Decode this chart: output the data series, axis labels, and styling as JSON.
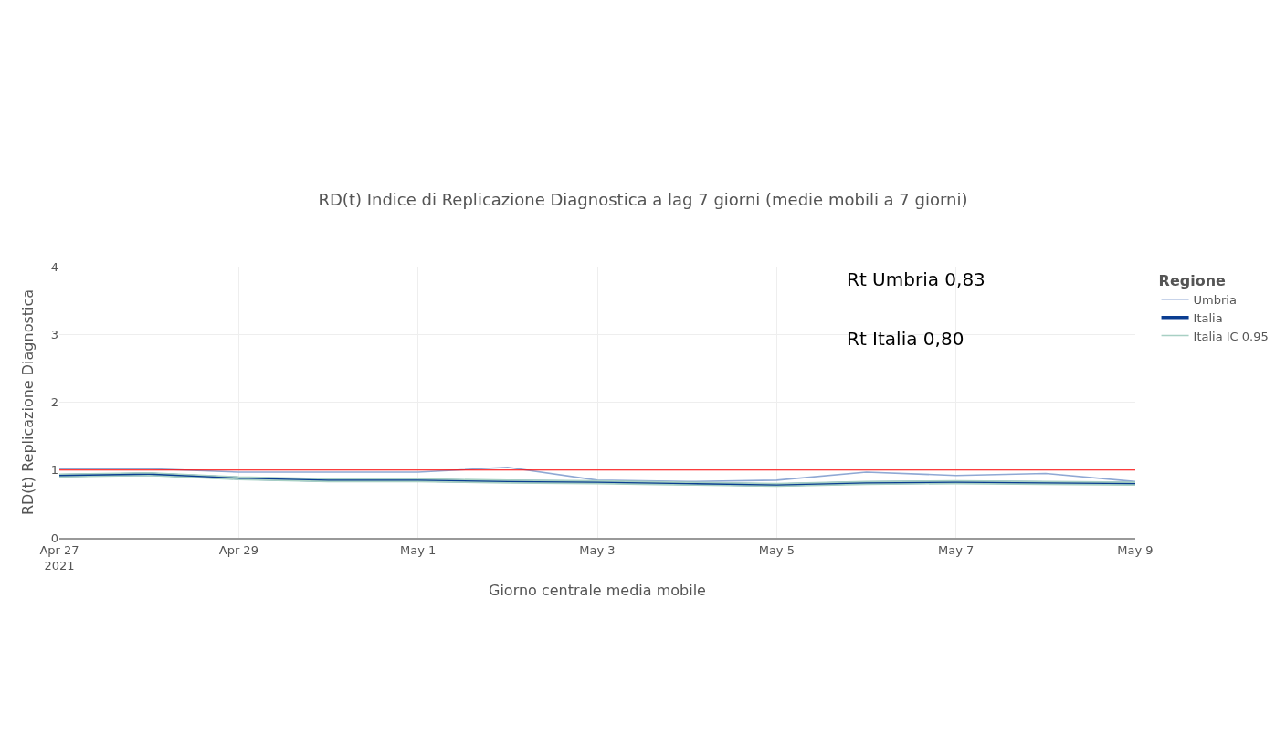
{
  "chart_data": {
    "type": "line",
    "title": "RD(t) Indice di Replicazione Diagnostica a lag 7 giorni (medie mobili a 7 giorni)",
    "xlabel": "Giorno centrale media mobile",
    "ylabel": "RD(t) Replicazione Diagnostica",
    "legend_title": "Regione",
    "x": [
      "2021-04-27",
      "2021-04-28",
      "2021-04-29",
      "2021-04-30",
      "2021-05-01",
      "2021-05-02",
      "2021-05-03",
      "2021-05-04",
      "2021-05-05",
      "2021-05-06",
      "2021-05-07",
      "2021-05-08",
      "2021-05-09"
    ],
    "series": [
      {
        "name": "Umbria",
        "color": "#8fa8d4",
        "values": [
          1.02,
          1.02,
          0.97,
          0.97,
          0.97,
          1.04,
          0.85,
          0.83,
          0.85,
          0.97,
          0.92,
          0.95,
          0.83
        ]
      },
      {
        "name": "Italia",
        "color": "#0a3d91",
        "values": [
          0.92,
          0.94,
          0.88,
          0.85,
          0.85,
          0.83,
          0.82,
          0.8,
          0.78,
          0.81,
          0.82,
          0.81,
          0.8
        ]
      },
      {
        "name": "Italia IC 0.95",
        "color": "#a8d0c4",
        "values": [
          0.9,
          0.92,
          0.86,
          0.83,
          0.83,
          0.81,
          0.8,
          0.78,
          0.76,
          0.79,
          0.8,
          0.79,
          0.78
        ]
      },
      {
        "color": "#a8d0c4",
        "values": [
          0.94,
          0.96,
          0.9,
          0.87,
          0.87,
          0.85,
          0.84,
          0.82,
          0.8,
          0.83,
          0.84,
          0.83,
          0.82
        ]
      }
    ],
    "ref_lines": [
      {
        "axis": "y",
        "value": 1,
        "color": "#ff0000"
      }
    ],
    "annotations": [
      "Rt Umbria 0,83",
      "Rt Italia 0,80"
    ],
    "xlim": [
      "2021-04-27",
      "2021-05-09"
    ],
    "xticks": [
      {
        "value": "2021-04-27",
        "label": "Apr 27\n2021"
      },
      {
        "value": "2021-04-29",
        "label": "Apr 29"
      },
      {
        "value": "2021-05-01",
        "label": "May 1"
      },
      {
        "value": "2021-05-03",
        "label": "May 3"
      },
      {
        "value": "2021-05-05",
        "label": "May 5"
      },
      {
        "value": "2021-05-07",
        "label": "May 7"
      },
      {
        "value": "2021-05-09",
        "label": "May 9"
      }
    ],
    "ylim": [
      0,
      4
    ],
    "yticks": [
      0,
      1,
      2,
      3,
      4
    ],
    "grid": true,
    "legend": "top right",
    "marker": "none",
    "line_style": "solid"
  }
}
